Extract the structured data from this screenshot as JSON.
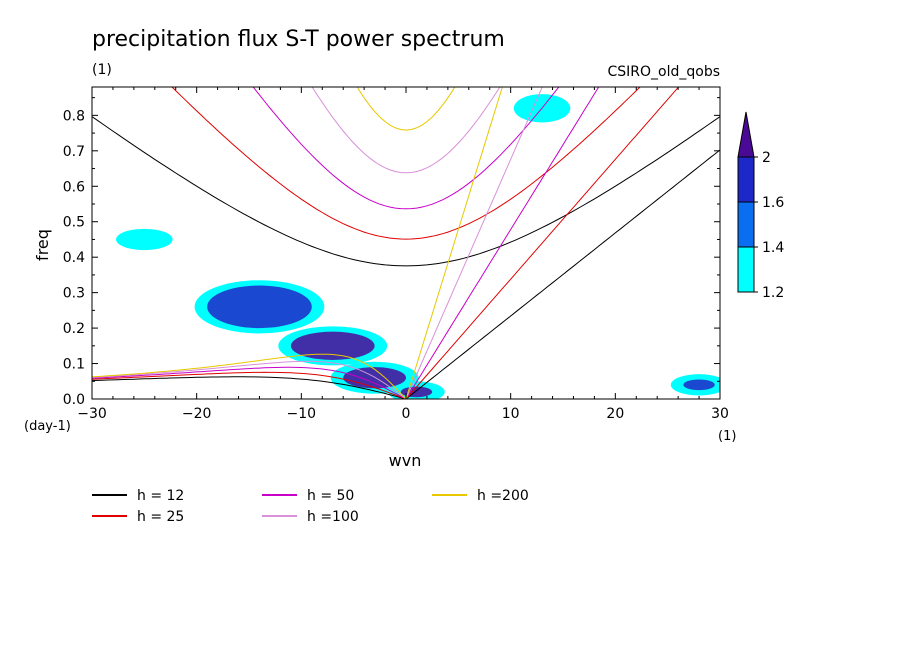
{
  "chart_data": {
    "type": "contour",
    "title": "precipitation flux S-T power spectrum",
    "subtitle_left": "(1)",
    "subtitle_right": "CSIRO_old_qobs",
    "xlabel": "wvn",
    "ylabel": "freq",
    "x_unit": "(1)",
    "y_unit": "(day-1)",
    "xlim": [
      -30,
      30
    ],
    "ylim": [
      0,
      0.88
    ],
    "x_ticks": [
      -30,
      -20,
      -10,
      0,
      10,
      20,
      30
    ],
    "x_tick_labels": [
      "−30",
      "−20",
      "−10",
      "0",
      "10",
      "20",
      "30"
    ],
    "y_ticks": [
      0,
      0.1,
      0.2,
      0.3,
      0.4,
      0.5,
      0.6,
      0.7,
      0.8
    ],
    "y_tick_labels": [
      "0.0",
      "0.1",
      "0.2",
      "0.3",
      "0.4",
      "0.5",
      "0.6",
      "0.7",
      "0.8"
    ],
    "colorbar": {
      "levels": [
        1.2,
        1.4,
        1.6,
        2
      ],
      "labels": [
        "1.2",
        "1.4",
        "1.6",
        "2"
      ],
      "colors": [
        "#00ffff",
        "#0a6ef0",
        "#1e28c8",
        "#4b0a96"
      ]
    },
    "dispersion_curves": [
      {
        "label": "h = 12",
        "h": 12,
        "color": "#000000"
      },
      {
        "label": "h = 25",
        "h": 25,
        "color": "#e00000"
      },
      {
        "label": "h = 50",
        "h": 50,
        "color": "#c800c8"
      },
      {
        "label": "h =100",
        "h": 100,
        "color": "#d890d8"
      },
      {
        "label": "h =200",
        "h": 200,
        "color": "#e8c800"
      }
    ],
    "contour_regions": [
      {
        "wvn_center": -14,
        "freq_center": 0.26,
        "wvn_width": 10,
        "freq_width": 0.12,
        "level": 1.6
      },
      {
        "wvn_center": -7,
        "freq_center": 0.15,
        "wvn_width": 8,
        "freq_width": 0.08,
        "level": 2
      },
      {
        "wvn_center": -3,
        "freq_center": 0.06,
        "wvn_width": 6,
        "freq_width": 0.06,
        "level": 2
      },
      {
        "wvn_center": 1,
        "freq_center": 0.02,
        "wvn_width": 3,
        "freq_width": 0.03,
        "level": 2
      },
      {
        "wvn_center": 28,
        "freq_center": 0.04,
        "wvn_width": 3,
        "freq_width": 0.03,
        "level": 1.6
      },
      {
        "wvn_center": -25,
        "freq_center": 0.45,
        "wvn_width": 3,
        "freq_width": 0.03,
        "level": 1.2
      },
      {
        "wvn_center": 13,
        "freq_center": 0.82,
        "wvn_width": 3,
        "freq_width": 0.05,
        "level": 1.2
      }
    ]
  }
}
